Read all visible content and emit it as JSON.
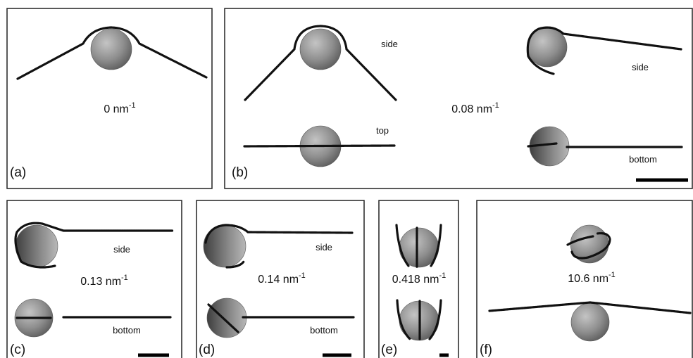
{
  "panels": [
    {
      "label": "(a)",
      "curvature": "0 nm",
      "exponent": "-1"
    },
    {
      "label": "(b)",
      "curvature": "0.08 nm",
      "exponent": "-1",
      "views": [
        "side",
        "top",
        "side",
        "bottom"
      ]
    },
    {
      "label": "(c)",
      "curvature": "0.13 nm",
      "exponent": "-1",
      "views": [
        "side",
        "bottom"
      ]
    },
    {
      "label": "(d)",
      "curvature": "0.14 nm",
      "exponent": "-1",
      "views": [
        "side",
        "bottom"
      ]
    },
    {
      "label": "(e)",
      "curvature": "0.418 nm",
      "exponent": "-1"
    },
    {
      "label": "(f)",
      "curvature": "10.6 nm",
      "exponent": "-1"
    }
  ]
}
